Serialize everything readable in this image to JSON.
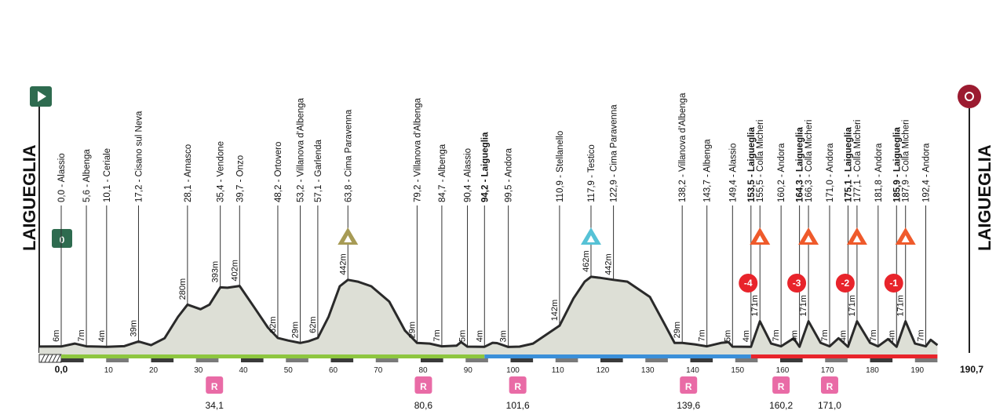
{
  "colors": {
    "profile_fill": "#dddfd6",
    "profile_line": "#2a2a2a",
    "green": "#8dc63f",
    "blue": "#3a8fd9",
    "red": "#e8242b",
    "dark": "#3a3a3a",
    "start_green": "#2e6b4f",
    "finish_red": "#9b1b30",
    "gpm_olive": "#a79b55",
    "gpm_cyan": "#56c2d6",
    "gpm_orange": "#ef5a2b",
    "feed_pink": "#e96ba6"
  },
  "icons": {
    "start": "play-icon",
    "finish": "target-icon",
    "km_zero": "flag-zero-icon",
    "climb": "mountain-triangle-icon",
    "feed": "feed-zone-icon",
    "countdown": "countdown-circle-icon"
  },
  "start_town": "LAIGUEGLIA",
  "finish_town": "LAIGUEGLIA",
  "km_zero_label": "0",
  "feed_letter": "R",
  "chart_data": {
    "type": "area",
    "title": "",
    "xlabel": "",
    "ylabel": "",
    "xlim": [
      0,
      190.7
    ],
    "ylim": [
      0,
      480
    ],
    "grid": false,
    "x_ticks": [
      0,
      10,
      20,
      30,
      40,
      50,
      60,
      70,
      80,
      90,
      100,
      110,
      120,
      130,
      140,
      150,
      160,
      170,
      180,
      190
    ],
    "x_tick_labels": [
      "0,0",
      "10",
      "20",
      "30",
      "40",
      "50",
      "60",
      "70",
      "80",
      "90",
      "100",
      "110",
      "120",
      "130",
      "140",
      "150",
      "160",
      "170",
      "180",
      "190"
    ],
    "x_end_label": "190,7",
    "profile": [
      [
        0,
        6
      ],
      [
        3,
        25
      ],
      [
        5.6,
        7
      ],
      [
        10.1,
        4
      ],
      [
        14,
        8
      ],
      [
        17.2,
        39
      ],
      [
        20,
        15
      ],
      [
        23,
        60
      ],
      [
        26,
        200
      ],
      [
        28.1,
        280
      ],
      [
        31,
        250
      ],
      [
        33,
        280
      ],
      [
        35.4,
        393
      ],
      [
        37,
        390
      ],
      [
        39.7,
        402
      ],
      [
        43,
        260
      ],
      [
        46,
        130
      ],
      [
        48.2,
        62
      ],
      [
        50.5,
        45
      ],
      [
        53.2,
        29
      ],
      [
        55,
        40
      ],
      [
        57.1,
        62
      ],
      [
        59.5,
        200
      ],
      [
        62,
        400
      ],
      [
        63.8,
        442
      ],
      [
        66,
        430
      ],
      [
        69,
        400
      ],
      [
        73,
        300
      ],
      [
        76.5,
        110
      ],
      [
        79.2,
        29
      ],
      [
        82,
        25
      ],
      [
        84.7,
        7
      ],
      [
        88,
        12
      ],
      [
        89,
        35
      ],
      [
        90.4,
        5
      ],
      [
        94.2,
        4
      ],
      [
        96,
        30
      ],
      [
        97,
        28
      ],
      [
        99.5,
        3
      ],
      [
        102,
        5
      ],
      [
        105,
        25
      ],
      [
        110.9,
        142
      ],
      [
        114,
        320
      ],
      [
        116.5,
        430
      ],
      [
        117.9,
        462
      ],
      [
        120,
        455
      ],
      [
        122.9,
        442
      ],
      [
        126,
        430
      ],
      [
        131,
        330
      ],
      [
        134.5,
        140
      ],
      [
        136.5,
        29
      ],
      [
        138.2,
        29
      ],
      [
        141,
        20
      ],
      [
        143.7,
        7
      ],
      [
        147,
        30
      ],
      [
        148.5,
        35
      ],
      [
        149.4,
        5
      ],
      [
        153.5,
        4
      ],
      [
        155.5,
        171
      ],
      [
        158,
        25
      ],
      [
        160.2,
        7
      ],
      [
        163,
        60
      ],
      [
        164.3,
        4
      ],
      [
        166.3,
        171
      ],
      [
        169,
        30
      ],
      [
        171,
        7
      ],
      [
        173,
        60
      ],
      [
        175.1,
        4
      ],
      [
        177.1,
        171
      ],
      [
        180,
        30
      ],
      [
        181.8,
        7
      ],
      [
        184,
        55
      ],
      [
        185.9,
        4
      ],
      [
        187.9,
        171
      ],
      [
        190,
        25
      ],
      [
        190.7,
        20
      ],
      [
        192.4,
        7
      ],
      [
        193.5,
        50
      ],
      [
        195,
        15
      ]
    ],
    "waypoints": [
      {
        "km": "0,0",
        "name": "Alassio",
        "x": 0.0,
        "bold": false
      },
      {
        "km": "5,6",
        "name": "Albenga",
        "x": 5.6,
        "bold": false
      },
      {
        "km": "10,1",
        "name": "Ceriale",
        "x": 10.1,
        "bold": false
      },
      {
        "km": "17,2",
        "name": "Cisano sul Neva",
        "x": 17.2,
        "bold": false
      },
      {
        "km": "28,1",
        "name": "Arnasco",
        "x": 28.1,
        "bold": false
      },
      {
        "km": "35,4",
        "name": "Vendone",
        "x": 35.4,
        "bold": false
      },
      {
        "km": "39,7",
        "name": "Onzo",
        "x": 39.7,
        "bold": false
      },
      {
        "km": "48,2",
        "name": "Ortovero",
        "x": 48.2,
        "bold": false
      },
      {
        "km": "53,2",
        "name": "Villanova d'Albenga",
        "x": 53.2,
        "bold": false
      },
      {
        "km": "57,1",
        "name": "Garlenda",
        "x": 57.1,
        "bold": false
      },
      {
        "km": "63,8",
        "name": "Cima Paravenna",
        "x": 63.8,
        "bold": false
      },
      {
        "km": "79,2",
        "name": "Villanova d'Albenga",
        "x": 79.2,
        "bold": false
      },
      {
        "km": "84,7",
        "name": "Albenga",
        "x": 84.7,
        "bold": false
      },
      {
        "km": "90,4",
        "name": "Alassio",
        "x": 90.4,
        "bold": false
      },
      {
        "km": "94,2",
        "name": "Laigueglia",
        "x": 94.2,
        "bold": true
      },
      {
        "km": "99,5",
        "name": "Andora",
        "x": 99.5,
        "bold": false
      },
      {
        "km": "110,9",
        "name": "Stellanello",
        "x": 110.9,
        "bold": false
      },
      {
        "km": "117,9",
        "name": "Testico",
        "x": 117.9,
        "bold": false
      },
      {
        "km": "122,9",
        "name": "Cima Paravenna",
        "x": 122.9,
        "bold": false
      },
      {
        "km": "138,2",
        "name": "Villanova d'Albenga",
        "x": 138.2,
        "bold": false
      },
      {
        "km": "143,7",
        "name": "Albenga",
        "x": 143.7,
        "bold": false
      },
      {
        "km": "149,4",
        "name": "Alassio",
        "x": 149.4,
        "bold": false
      },
      {
        "km": "153,5",
        "name": "Laigueglia",
        "x": 153.5,
        "bold": true
      },
      {
        "km": "155,5",
        "name": "Colla Micheri",
        "x": 155.5,
        "bold": false
      },
      {
        "km": "160,2",
        "name": "Andora",
        "x": 160.2,
        "bold": false
      },
      {
        "km": "164,3",
        "name": "Laigueglia",
        "x": 164.3,
        "bold": true
      },
      {
        "km": "166,3",
        "name": "Colla Micheri",
        "x": 166.3,
        "bold": false
      },
      {
        "km": "171,0",
        "name": "Andora",
        "x": 171.0,
        "bold": false
      },
      {
        "km": "175,1",
        "name": "Laigueglia",
        "x": 175.1,
        "bold": true
      },
      {
        "km": "177,1",
        "name": "Colla Micheri",
        "x": 177.1,
        "bold": false
      },
      {
        "km": "181,8",
        "name": "Andora",
        "x": 181.8,
        "bold": false
      },
      {
        "km": "185,9",
        "name": "Laigueglia",
        "x": 185.9,
        "bold": true
      },
      {
        "km": "187,9",
        "name": "Colla Micheri",
        "x": 187.9,
        "bold": false
      },
      {
        "km": "192,4",
        "name": "Andora",
        "x": 192.4,
        "bold": false
      }
    ],
    "elevation_labels": [
      {
        "x": 0,
        "text": "6m",
        "alt": 6
      },
      {
        "x": 5.6,
        "text": "7m",
        "alt": 7
      },
      {
        "x": 10.1,
        "text": "4m",
        "alt": 4
      },
      {
        "x": 17.2,
        "text": "39m",
        "alt": 39
      },
      {
        "x": 28.1,
        "text": "280m",
        "alt": 280
      },
      {
        "x": 35.4,
        "text": "393m",
        "alt": 393
      },
      {
        "x": 39.7,
        "text": "402m",
        "alt": 402
      },
      {
        "x": 48.2,
        "text": "62m",
        "alt": 62
      },
      {
        "x": 53.2,
        "text": "29m",
        "alt": 29
      },
      {
        "x": 57.1,
        "text": "62m",
        "alt": 62
      },
      {
        "x": 63.8,
        "text": "442m",
        "alt": 442
      },
      {
        "x": 79.2,
        "text": "29m",
        "alt": 29
      },
      {
        "x": 84.7,
        "text": "7m",
        "alt": 7
      },
      {
        "x": 90.4,
        "text": "5m",
        "alt": 5
      },
      {
        "x": 94.2,
        "text": "4m",
        "alt": 4
      },
      {
        "x": 99.5,
        "text": "3m",
        "alt": 3
      },
      {
        "x": 110.9,
        "text": "142m",
        "alt": 142
      },
      {
        "x": 117.9,
        "text": "462m",
        "alt": 462
      },
      {
        "x": 122.9,
        "text": "442m",
        "alt": 442
      },
      {
        "x": 138.2,
        "text": "29m",
        "alt": 29
      },
      {
        "x": 143.7,
        "text": "7m",
        "alt": 7
      },
      {
        "x": 149.4,
        "text": "5m",
        "alt": 5
      },
      {
        "x": 153.5,
        "text": "4m",
        "alt": 4
      },
      {
        "x": 155.5,
        "text": "171m",
        "alt": 171
      },
      {
        "x": 160.2,
        "text": "7m",
        "alt": 7
      },
      {
        "x": 164.3,
        "text": "4m",
        "alt": 4
      },
      {
        "x": 166.3,
        "text": "171m",
        "alt": 171
      },
      {
        "x": 171.0,
        "text": "7m",
        "alt": 7
      },
      {
        "x": 175.1,
        "text": "4m",
        "alt": 4
      },
      {
        "x": 177.1,
        "text": "171m",
        "alt": 171
      },
      {
        "x": 181.8,
        "text": "7m",
        "alt": 7
      },
      {
        "x": 185.9,
        "text": "4m",
        "alt": 4
      },
      {
        "x": 187.9,
        "text": "171m",
        "alt": 171
      },
      {
        "x": 192.4,
        "text": "7m",
        "alt": 7
      }
    ],
    "climbs": [
      {
        "x": 63.8,
        "color": "#a79b55"
      },
      {
        "x": 117.9,
        "color": "#56c2d6"
      },
      {
        "x": 155.5,
        "color": "#ef5a2b"
      },
      {
        "x": 166.3,
        "color": "#ef5a2b"
      },
      {
        "x": 177.1,
        "color": "#ef5a2b"
      },
      {
        "x": 187.9,
        "color": "#ef5a2b"
      }
    ],
    "countdown_markers": [
      {
        "x": 155.5,
        "text": "-4"
      },
      {
        "x": 166.3,
        "text": "-3"
      },
      {
        "x": 177.1,
        "text": "-2"
      },
      {
        "x": 187.9,
        "text": "-1"
      }
    ],
    "feed_zones": [
      {
        "x": 34.1,
        "label": "34,1"
      },
      {
        "x": 80.6,
        "label": "80,6"
      },
      {
        "x": 101.6,
        "label": "101,6"
      },
      {
        "x": 139.6,
        "label": "139,6"
      },
      {
        "x": 160.2,
        "label": "160,2"
      },
      {
        "x": 171.0,
        "label": "171,0"
      }
    ],
    "route_segments": [
      {
        "from": 0,
        "to": 94.2,
        "color": "#8dc63f"
      },
      {
        "from": 94.2,
        "to": 153.5,
        "color": "#3a8fd9"
      },
      {
        "from": 153.5,
        "to": 195,
        "color": "#e8242b"
      }
    ]
  }
}
